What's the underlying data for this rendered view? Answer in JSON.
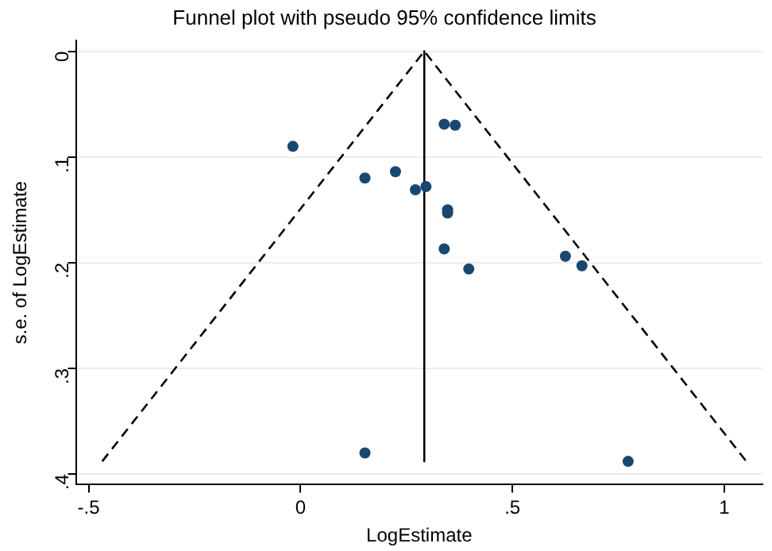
{
  "chart_data": {
    "type": "scatter",
    "title": "Funnel plot with pseudo 95% confidence limits",
    "xlabel": "LogEstimate",
    "ylabel": "s.e. of LogEstimate",
    "xlim": [
      -0.53,
      1.09
    ],
    "xticks": [
      {
        "value": -0.5,
        "label": "-.5"
      },
      0,
      {
        "value": 0.5,
        "label": ".5"
      },
      1
    ],
    "ylim": [
      0.41,
      -0.01
    ],
    "yticks": [
      0,
      {
        "value": 0.1,
        "label": ".1"
      },
      {
        "value": 0.2,
        "label": ".2"
      },
      {
        "value": 0.3,
        "label": ".3"
      },
      {
        "value": 0.4,
        "label": ".4"
      }
    ],
    "grid": "y",
    "marker": "circle",
    "series": [
      {
        "color": "#1a476f",
        "x": [
          -0.018,
          0.152,
          0.224,
          0.271,
          0.296,
          0.339,
          0.365,
          0.347,
          0.347,
          0.339,
          0.397,
          0.625,
          0.664,
          0.152,
          0.773
        ],
        "values": [
          0.09,
          0.12,
          0.114,
          0.131,
          0.128,
          0.069,
          0.07,
          0.15,
          0.153,
          0.187,
          0.206,
          0.194,
          0.203,
          0.38,
          0.388
        ]
      },
      {
        "type": "line",
        "color": "#000000",
        "marker": "none",
        "line_style": "solid",
        "x": [
          0.292,
          0.292
        ],
        "values": [
          0,
          0.388
        ]
      },
      {
        "type": "line",
        "color": "#000000",
        "marker": "none",
        "line_style": "dashed",
        "x": [
          -0.468,
          0.292,
          1.052
        ],
        "values": [
          0.388,
          0,
          0.388
        ]
      }
    ]
  }
}
